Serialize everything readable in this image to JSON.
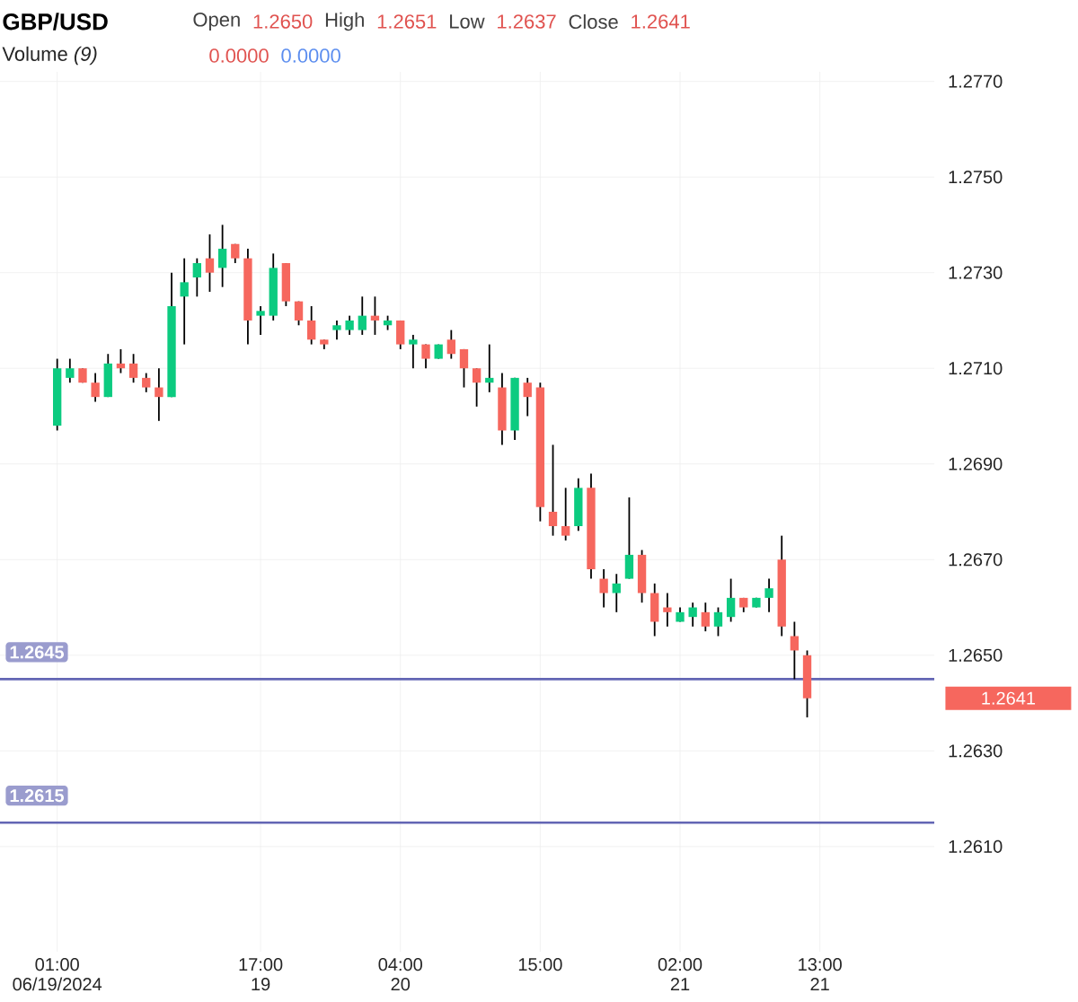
{
  "chart_data": {
    "type": "candlestick",
    "title": "GBP/USD",
    "annotations": [
      "Open",
      "1.2650",
      "High",
      "1.2651",
      "Low",
      "1.2637",
      "Close",
      "1.2641",
      "Volume *(9)*",
      "0.0000",
      "0.0000",
      "1.2641"
    ],
    "x": [
      "2024-06-19T01:00",
      "2024-06-19T02:00",
      "2024-06-19T03:00",
      "2024-06-19T04:00",
      "2024-06-19T05:00",
      "2024-06-19T06:00",
      "2024-06-19T07:00",
      "2024-06-19T08:00",
      "2024-06-19T09:00",
      "2024-06-19T10:00",
      "2024-06-19T11:00",
      "2024-06-19T12:00",
      "2024-06-19T13:00",
      "2024-06-19T14:00",
      "2024-06-19T15:00",
      "2024-06-19T16:00",
      "2024-06-19T17:00",
      "2024-06-19T18:00",
      "2024-06-19T19:00",
      "2024-06-19T20:00",
      "2024-06-19T21:00",
      "2024-06-19T22:00",
      "2024-06-19T23:00",
      "2024-06-20T00:00",
      "2024-06-20T01:00",
      "2024-06-20T02:00",
      "2024-06-20T03:00",
      "2024-06-20T04:00",
      "2024-06-20T05:00",
      "2024-06-20T06:00",
      "2024-06-20T07:00",
      "2024-06-20T08:00",
      "2024-06-20T09:00",
      "2024-06-20T10:00",
      "2024-06-20T11:00",
      "2024-06-20T12:00",
      "2024-06-20T13:00",
      "2024-06-20T14:00",
      "2024-06-20T15:00",
      "2024-06-20T16:00",
      "2024-06-20T17:00",
      "2024-06-20T18:00",
      "2024-06-20T19:00",
      "2024-06-20T20:00",
      "2024-06-20T21:00",
      "2024-06-20T22:00",
      "2024-06-20T23:00",
      "2024-06-21T00:00",
      "2024-06-21T01:00",
      "2024-06-21T02:00",
      "2024-06-21T03:00",
      "2024-06-21T04:00",
      "2024-06-21T05:00",
      "2024-06-21T06:00",
      "2024-06-21T07:00",
      "2024-06-21T08:00",
      "2024-06-21T09:00",
      "2024-06-21T10:00",
      "2024-06-21T11:00",
      "2024-06-21T12:00"
    ],
    "ohlc": [
      [
        1.2698,
        1.2712,
        1.2697,
        1.271
      ],
      [
        1.2708,
        1.2712,
        1.2707,
        1.271
      ],
      [
        1.271,
        1.271,
        1.2707,
        1.2707
      ],
      [
        1.2707,
        1.2709,
        1.2703,
        1.2704
      ],
      [
        1.2704,
        1.2713,
        1.2704,
        1.2711
      ],
      [
        1.2711,
        1.2714,
        1.2709,
        1.271
      ],
      [
        1.2711,
        1.2713,
        1.2707,
        1.2708
      ],
      [
        1.2708,
        1.2709,
        1.2705,
        1.2706
      ],
      [
        1.2706,
        1.271,
        1.2699,
        1.2704
      ],
      [
        1.2704,
        1.273,
        1.2704,
        1.2723
      ],
      [
        1.2725,
        1.2733,
        1.2715,
        1.2728
      ],
      [
        1.2729,
        1.2733,
        1.2725,
        1.2732
      ],
      [
        1.2733,
        1.2738,
        1.2726,
        1.273
      ],
      [
        1.2731,
        1.274,
        1.2727,
        1.2735
      ],
      [
        1.2736,
        1.2736,
        1.2732,
        1.2733
      ],
      [
        1.2733,
        1.2735,
        1.2715,
        1.272
      ],
      [
        1.2721,
        1.2723,
        1.2717,
        1.2722
      ],
      [
        1.2721,
        1.2734,
        1.272,
        1.2731
      ],
      [
        1.2732,
        1.2732,
        1.2723,
        1.2724
      ],
      [
        1.2724,
        1.2724,
        1.2719,
        1.272
      ],
      [
        1.272,
        1.2723,
        1.2715,
        1.2716
      ],
      [
        1.2716,
        1.2716,
        1.2714,
        1.2715
      ],
      [
        1.2718,
        1.272,
        1.2716,
        1.2719
      ],
      [
        1.2718,
        1.2721,
        1.2717,
        1.272
      ],
      [
        1.2718,
        1.2725,
        1.2717,
        1.2721
      ],
      [
        1.2721,
        1.2725,
        1.2717,
        1.272
      ],
      [
        1.2719,
        1.2721,
        1.2718,
        1.272
      ],
      [
        1.272,
        1.272,
        1.2714,
        1.2715
      ],
      [
        1.2715,
        1.2717,
        1.271,
        1.2716
      ],
      [
        1.2715,
        1.2715,
        1.271,
        1.2712
      ],
      [
        1.2712,
        1.2715,
        1.2712,
        1.2715
      ],
      [
        1.2716,
        1.2718,
        1.2712,
        1.2713
      ],
      [
        1.2714,
        1.2714,
        1.2706,
        1.271
      ],
      [
        1.271,
        1.271,
        1.2702,
        1.2707
      ],
      [
        1.2707,
        1.2715,
        1.2705,
        1.2708
      ],
      [
        1.2706,
        1.2709,
        1.2694,
        1.2697
      ],
      [
        1.2697,
        1.2708,
        1.2695,
        1.2708
      ],
      [
        1.2707,
        1.2708,
        1.27,
        1.2704
      ],
      [
        1.2706,
        1.2707,
        1.2678,
        1.2681
      ],
      [
        1.268,
        1.2694,
        1.2675,
        1.2677
      ],
      [
        1.2677,
        1.2685,
        1.2674,
        1.2675
      ],
      [
        1.2677,
        1.2687,
        1.2676,
        1.2685
      ],
      [
        1.2685,
        1.2688,
        1.2666,
        1.2668
      ],
      [
        1.2666,
        1.2668,
        1.266,
        1.2663
      ],
      [
        1.2663,
        1.2667,
        1.2659,
        1.2665
      ],
      [
        1.2666,
        1.2683,
        1.2666,
        1.2671
      ],
      [
        1.2671,
        1.2672,
        1.2661,
        1.2663
      ],
      [
        1.2663,
        1.2665,
        1.2654,
        1.2657
      ],
      [
        1.266,
        1.2663,
        1.2656,
        1.2659
      ],
      [
        1.2657,
        1.266,
        1.2657,
        1.2659
      ],
      [
        1.2658,
        1.2661,
        1.2656,
        1.266
      ],
      [
        1.2659,
        1.2661,
        1.2655,
        1.2656
      ],
      [
        1.2656,
        1.266,
        1.2654,
        1.2659
      ],
      [
        1.2658,
        1.2666,
        1.2657,
        1.2662
      ],
      [
        1.2662,
        1.2662,
        1.2659,
        1.266
      ],
      [
        1.266,
        1.2662,
        1.266,
        1.2662
      ],
      [
        1.2662,
        1.2666,
        1.2659,
        1.2664
      ],
      [
        1.267,
        1.2675,
        1.2654,
        1.2656
      ],
      [
        1.2654,
        1.2657,
        1.2645,
        1.2651
      ],
      [
        1.265,
        1.2651,
        1.2637,
        1.2641
      ]
    ],
    "colors": [
      "#0ccb80",
      "#0ccb80",
      "#f6675e",
      "#f6675e",
      "#0ccb80",
      "#f6675e",
      "#f6675e",
      "#f6675e",
      "#f6675e",
      "#0ccb80",
      "#0ccb80",
      "#0ccb80",
      "#f6675e",
      "#0ccb80",
      "#f6675e",
      "#f6675e",
      "#0ccb80",
      "#0ccb80",
      "#f6675e",
      "#f6675e",
      "#f6675e",
      "#f6675e",
      "#0ccb80",
      "#0ccb80",
      "#0ccb80",
      "#f6675e",
      "#0ccb80",
      "#f6675e",
      "#0ccb80",
      "#f6675e",
      "#0ccb80",
      "#f6675e",
      "#f6675e",
      "#f6675e",
      "#0ccb80",
      "#f6675e",
      "#0ccb80",
      "#f6675e",
      "#f6675e",
      "#f6675e",
      "#f6675e",
      "#0ccb80",
      "#f6675e",
      "#f6675e",
      "#0ccb80",
      "#0ccb80",
      "#f6675e",
      "#f6675e",
      "#f6675e",
      "#0ccb80",
      "#0ccb80",
      "#f6675e",
      "#0ccb80",
      "#0ccb80",
      "#f6675e",
      "#0ccb80",
      "#0ccb80",
      "#f6675e",
      "#f6675e",
      "#f6675e"
    ],
    "xlim": [
      "2024-06-18T20:30",
      "2024-06-21T22:00"
    ],
    "xticks": [
      {
        "value": "2024-06-19T01:00",
        "label": "01:00 06/19/2024"
      },
      {
        "value": "2024-06-19T17:00",
        "label": "17:00 19"
      },
      {
        "value": "2024-06-20T04:00",
        "label": "04:00 20"
      },
      {
        "value": "2024-06-20T15:00",
        "label": "15:00"
      },
      {
        "value": "2024-06-21T02:00",
        "label": "02:00 21"
      },
      {
        "value": "2024-06-21T13:00",
        "label": "13:00 21"
      }
    ],
    "ylim": [
      1.2588,
      1.2772
    ],
    "yticks": [
      {
        "value": 1.261,
        "label": "1.2610"
      },
      {
        "value": 1.263,
        "label": "1.2630"
      },
      {
        "value": 1.265,
        "label": "1.2650"
      },
      {
        "value": 1.267,
        "label": "1.2670"
      },
      {
        "value": 1.269,
        "label": "1.2690"
      },
      {
        "value": 1.271,
        "label": "1.2710"
      },
      {
        "value": 1.273,
        "label": "1.2730"
      },
      {
        "value": 1.275,
        "label": "1.2750"
      },
      {
        "value": 1.277,
        "label": "1.2770"
      }
    ],
    "ref_lines": [
      {
        "axis": "y",
        "value": 1.2645,
        "label": "1.2645",
        "color": "#6366b4"
      },
      {
        "axis": "y",
        "value": 1.2615,
        "label": "1.2615",
        "color": "#6366b4"
      }
    ],
    "grid": true
  }
}
